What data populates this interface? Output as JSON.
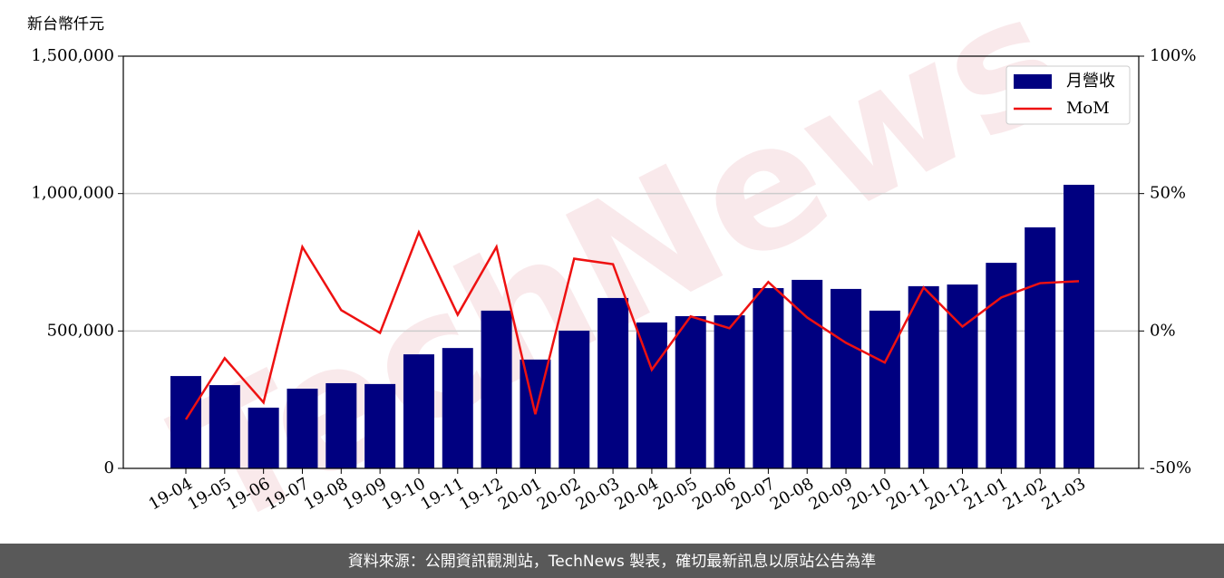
{
  "chart_data": {
    "type": "bar_line",
    "y_label": "新台幣仟元",
    "watermark": "TechNews",
    "footer": "資料來源：公開資訊觀測站，TechNews 製表，確切最新訊息以原站公告為準",
    "categories": [
      "19-04",
      "19-05",
      "19-06",
      "19-07",
      "19-08",
      "19-09",
      "19-10",
      "19-11",
      "19-12",
      "20-01",
      "20-02",
      "20-03",
      "20-04",
      "20-05",
      "20-06",
      "20-07",
      "20-08",
      "20-09",
      "20-10",
      "20-11",
      "20-12",
      "21-01",
      "21-02",
      "21-03"
    ],
    "series": [
      {
        "name": "月營收",
        "type": "bar",
        "color": "#000080",
        "values": [
          336000,
          303000,
          221000,
          290000,
          310000,
          307000,
          415000,
          438000,
          574000,
          396000,
          501000,
          620000,
          531000,
          554000,
          557000,
          656000,
          686000,
          653000,
          574000,
          663000,
          669000,
          748000,
          877000,
          1032000
        ]
      },
      {
        "name": "MoM",
        "type": "line",
        "axis": "y2",
        "color": "#ee1111",
        "values": [
          -32.2,
          -9.9,
          -26,
          30.6,
          7.6,
          -0.7,
          35.9,
          5.9,
          30.6,
          -30.3,
          26.3,
          24.3,
          -14.1,
          5.3,
          1.0,
          17.8,
          4.9,
          -4.3,
          -11.5,
          15.8,
          1.6,
          12.2,
          17.4,
          18.1
        ]
      }
    ],
    "ylim": [
      0,
      1500000
    ],
    "yticks": [
      0,
      {
        "value": 500000,
        "label": "500,000"
      },
      {
        "value": 1000000,
        "label": "1,000,000"
      },
      {
        "value": 1500000,
        "label": "1,500,000"
      }
    ],
    "y2lim": [
      -50,
      100
    ],
    "y2ticks": [
      {
        "value": -50,
        "label": "-50%"
      },
      {
        "value": 0,
        "label": "0%"
      },
      {
        "value": 50,
        "label": "50%"
      },
      {
        "value": 100,
        "label": "100%"
      }
    ],
    "grid": true,
    "legend": "upper right"
  }
}
